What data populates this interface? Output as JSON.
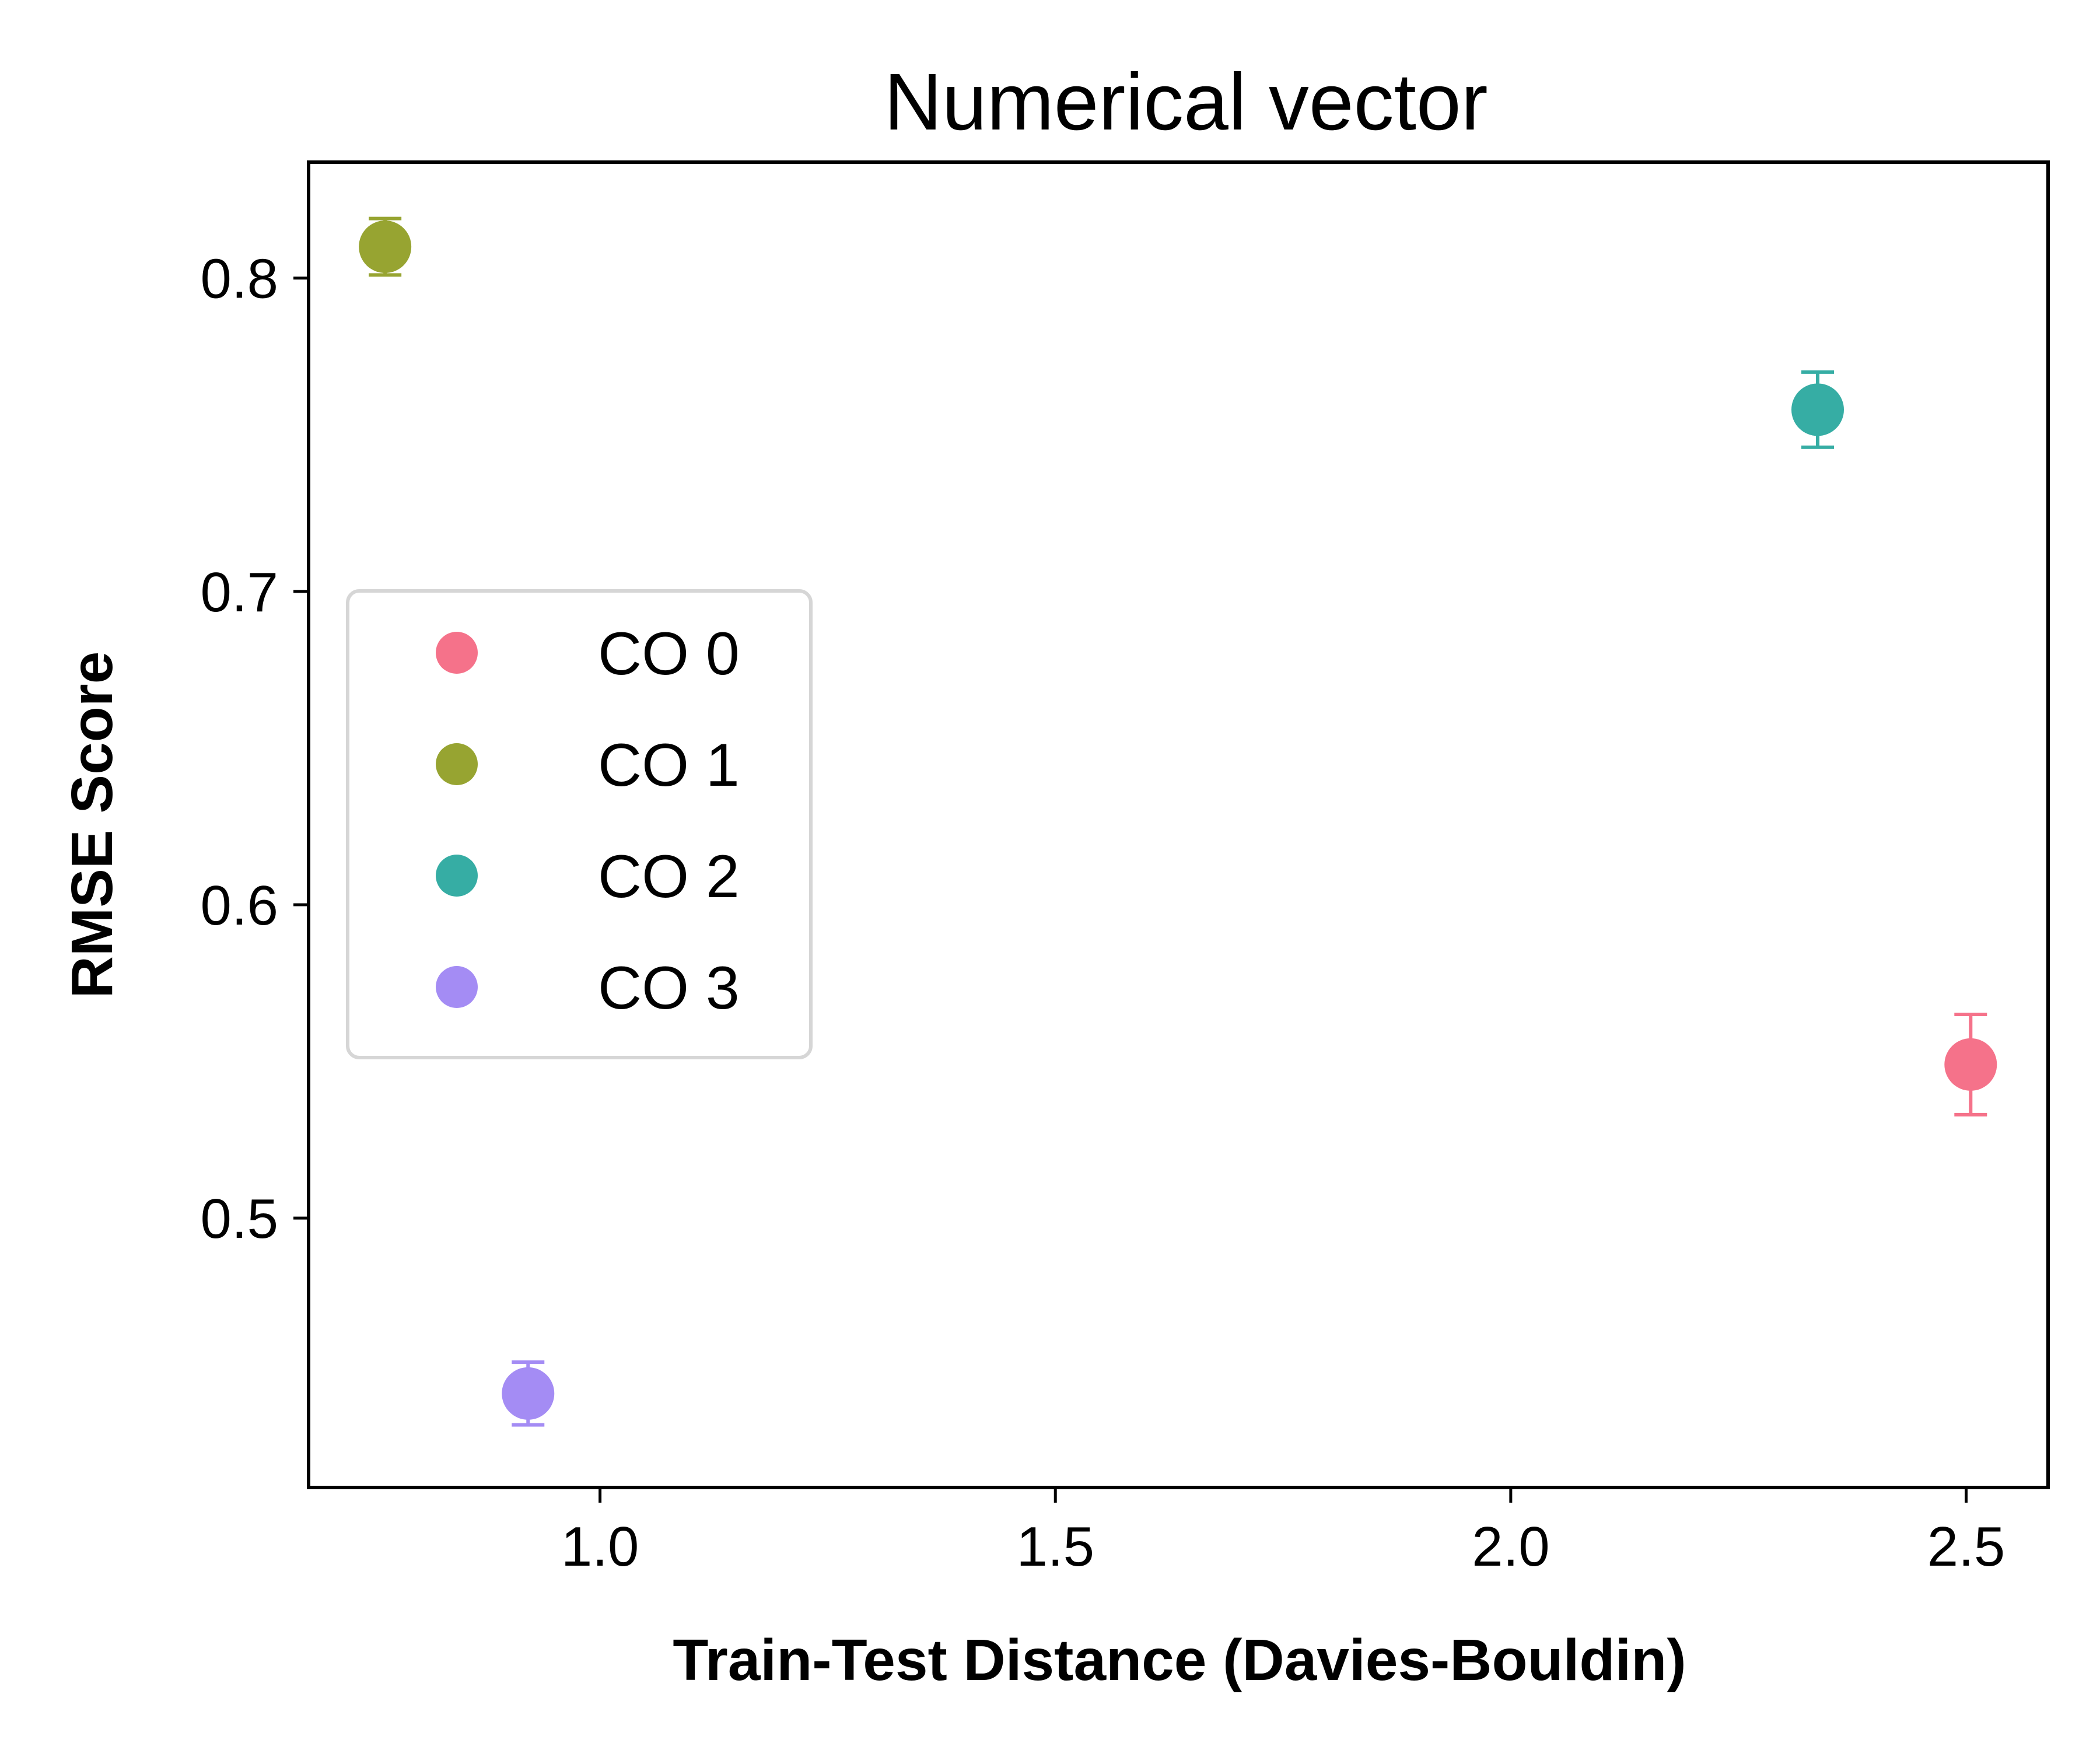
{
  "chart_data": {
    "type": "scatter",
    "title": "Numerical vector",
    "xlabel": "Train-Test Distance (Davies-Bouldin)",
    "ylabel": "RMSE Score",
    "xlim": [
      0.68,
      2.59
    ],
    "ylim": [
      0.414,
      0.837
    ],
    "xticks": [
      {
        "value": 1.0,
        "label": "1.0"
      },
      {
        "value": 1.5,
        "label": "1.5"
      },
      {
        "value": 2.0,
        "label": "2.0"
      },
      {
        "value": 2.5,
        "label": "2.5"
      }
    ],
    "yticks": [
      {
        "value": 0.5,
        "label": "0.5"
      },
      {
        "value": 0.6,
        "label": "0.6"
      },
      {
        "value": 0.7,
        "label": "0.7"
      },
      {
        "value": 0.8,
        "label": "0.8"
      }
    ],
    "grid": false,
    "legend_position": "center-left",
    "series": [
      {
        "name": "CO 0",
        "color": "#f5728a",
        "x": 2.505,
        "y": 0.549,
        "err": 0.016
      },
      {
        "name": "CO 1",
        "color": "#97a431",
        "x": 0.764,
        "y": 0.81,
        "err": 0.009
      },
      {
        "name": "CO 2",
        "color": "#36ada4",
        "x": 2.337,
        "y": 0.758,
        "err": 0.012
      },
      {
        "name": "CO 3",
        "color": "#a48cf4",
        "x": 0.921,
        "y": 0.444,
        "err": 0.01
      }
    ]
  }
}
